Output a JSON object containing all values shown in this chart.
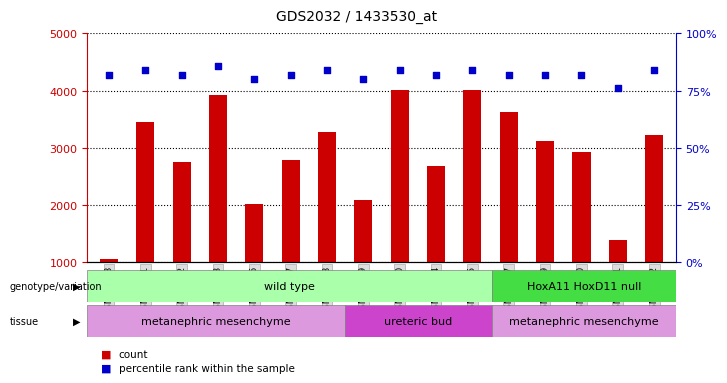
{
  "title": "GDS2032 / 1433530_at",
  "samples": [
    "GSM87678",
    "GSM87681",
    "GSM87682",
    "GSM87683",
    "GSM87686",
    "GSM87687",
    "GSM87688",
    "GSM87679",
    "GSM87680",
    "GSM87684",
    "GSM87685",
    "GSM87677",
    "GSM87689",
    "GSM87690",
    "GSM87691",
    "GSM87692"
  ],
  "counts": [
    1050,
    3450,
    2750,
    3920,
    2020,
    2780,
    3280,
    2080,
    4010,
    2680,
    4020,
    3620,
    3120,
    2930,
    1390,
    3220
  ],
  "percentiles": [
    82,
    84,
    82,
    86,
    80,
    82,
    84,
    80,
    84,
    82,
    84,
    82,
    82,
    82,
    76,
    84
  ],
  "ylim_left": [
    1000,
    5000
  ],
  "ylim_right": [
    0,
    100
  ],
  "yticks_left": [
    1000,
    2000,
    3000,
    4000,
    5000
  ],
  "yticks_right": [
    0,
    25,
    50,
    75,
    100
  ],
  "bar_color": "#cc0000",
  "dot_color": "#0000cc",
  "grid_color": "#000000",
  "bg_color": "#ffffff",
  "genotype_groups": [
    {
      "label": "wild type",
      "start": 0,
      "end": 11,
      "color": "#aaffaa"
    },
    {
      "label": "HoxA11 HoxD11 null",
      "start": 11,
      "end": 16,
      "color": "#44dd44"
    }
  ],
  "tissue_groups": [
    {
      "label": "metanephric mesenchyme",
      "start": 0,
      "end": 7,
      "color": "#dd99dd"
    },
    {
      "label": "ureteric bud",
      "start": 7,
      "end": 11,
      "color": "#cc44cc"
    },
    {
      "label": "metanephric mesenchyme",
      "start": 11,
      "end": 16,
      "color": "#dd99dd"
    }
  ]
}
